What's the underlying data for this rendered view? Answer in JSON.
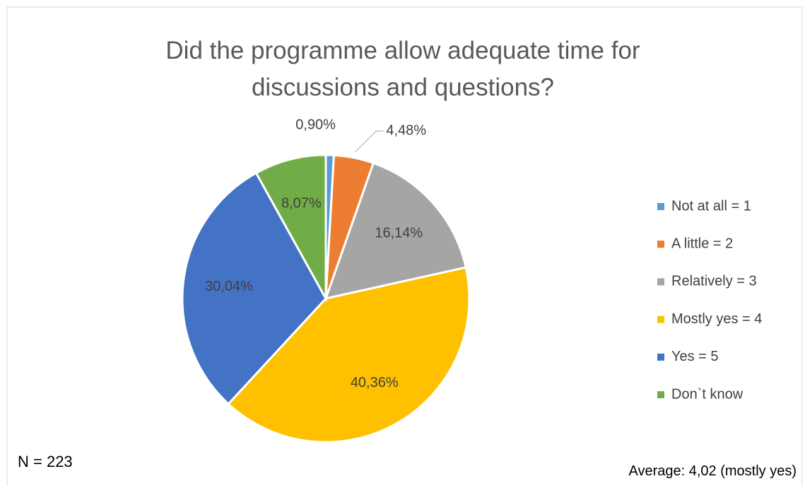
{
  "chart_data": {
    "type": "pie",
    "title": "Did the programme allow adequate time for discussions and questions?",
    "categories": [
      "Not at all = 1",
      "A little = 2",
      "Relatively = 3",
      "Mostly yes = 4",
      "Yes = 5",
      "Don`t know"
    ],
    "values": [
      0.9,
      4.48,
      16.14,
      40.36,
      30.04,
      8.07
    ],
    "value_labels": [
      "0,90%",
      "4,48%",
      "16,14%",
      "40,36%",
      "30,04%",
      "8,07%"
    ],
    "colors": [
      "#5b9bd5",
      "#ed7d31",
      "#a5a5a5",
      "#ffc000",
      "#4472c4",
      "#70ad47"
    ],
    "legend": "right",
    "annotations": [
      "N = 223",
      "Average: 4,02 (mostly yes)"
    ]
  }
}
